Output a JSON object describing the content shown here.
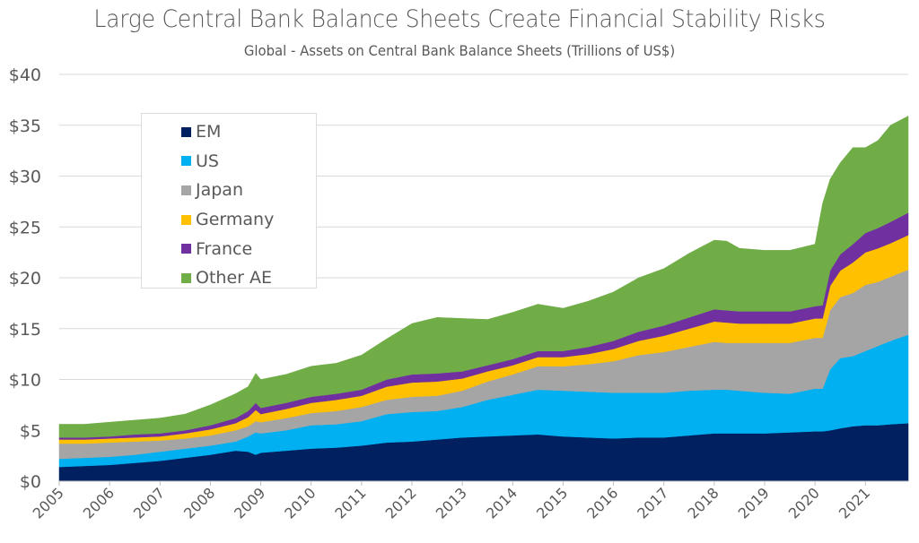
{
  "chart_data": {
    "type": "area",
    "stacked": true,
    "title": "Large Central Bank Balance Sheets Create Financial Stability Risks",
    "subtitle": "Global - Assets on Central Bank Balance Sheets (Trillions of US$)",
    "xlabel": "",
    "ylabel": "",
    "ylim": [
      0,
      40
    ],
    "xlim": [
      2005,
      2021.85
    ],
    "y_ticks": [
      "$0",
      "$5",
      "$10",
      "$15",
      "$20",
      "$25",
      "$30",
      "$35",
      "$40"
    ],
    "y_tick_values": [
      0,
      5,
      10,
      15,
      20,
      25,
      30,
      35,
      40
    ],
    "x_ticks": [
      "2005",
      "2006",
      "2007",
      "2008",
      "2009",
      "2010",
      "2011",
      "2012",
      "2013",
      "2014",
      "2015",
      "2016",
      "2017",
      "2018",
      "2019",
      "2020",
      "2021"
    ],
    "grid": true,
    "legend_position": "top-left",
    "x": [
      2005.0,
      2005.5,
      2006.0,
      2006.5,
      2007.0,
      2007.5,
      2008.0,
      2008.5,
      2008.75,
      2008.9,
      2009.0,
      2009.5,
      2010.0,
      2010.5,
      2011.0,
      2011.5,
      2012.0,
      2012.5,
      2013.0,
      2013.5,
      2014.0,
      2014.5,
      2015.0,
      2015.5,
      2016.0,
      2016.5,
      2017.0,
      2017.5,
      2018.0,
      2018.25,
      2018.5,
      2019.0,
      2019.5,
      2020.0,
      2020.15,
      2020.3,
      2020.5,
      2020.75,
      2021.0,
      2021.25,
      2021.5,
      2021.85
    ],
    "series": [
      {
        "name": "EM",
        "color": "#002060",
        "values": [
          1.4,
          1.5,
          1.6,
          1.8,
          2.0,
          2.3,
          2.6,
          3.0,
          2.9,
          2.6,
          2.8,
          3.0,
          3.2,
          3.3,
          3.5,
          3.8,
          3.9,
          4.1,
          4.3,
          4.4,
          4.5,
          4.6,
          4.4,
          4.3,
          4.2,
          4.3,
          4.3,
          4.5,
          4.7,
          4.7,
          4.7,
          4.7,
          4.8,
          4.9,
          4.9,
          5.0,
          5.2,
          5.4,
          5.5,
          5.5,
          5.6,
          5.7
        ]
      },
      {
        "name": "US",
        "color": "#00B0F0",
        "values": [
          0.8,
          0.8,
          0.8,
          0.8,
          0.9,
          0.9,
          0.9,
          0.9,
          1.5,
          2.2,
          1.9,
          2.0,
          2.3,
          2.3,
          2.4,
          2.8,
          2.9,
          2.8,
          3.0,
          3.6,
          4.0,
          4.4,
          4.5,
          4.5,
          4.5,
          4.4,
          4.4,
          4.4,
          4.3,
          4.3,
          4.2,
          4.0,
          3.8,
          4.2,
          4.2,
          6.0,
          6.9,
          6.9,
          7.3,
          7.8,
          8.2,
          8.7
        ]
      },
      {
        "name": "Japan",
        "color": "#A5A5A5",
        "values": [
          1.5,
          1.4,
          1.4,
          1.3,
          1.1,
          1.0,
          1.0,
          1.1,
          1.0,
          1.1,
          1.1,
          1.2,
          1.2,
          1.3,
          1.4,
          1.4,
          1.5,
          1.5,
          1.6,
          1.8,
          2.0,
          2.3,
          2.4,
          2.7,
          3.1,
          3.7,
          4.0,
          4.3,
          4.7,
          4.6,
          4.7,
          4.9,
          5.0,
          5.0,
          5.0,
          5.8,
          6.0,
          6.2,
          6.5,
          6.3,
          6.3,
          6.4
        ]
      },
      {
        "name": "Germany",
        "color": "#FFC000",
        "values": [
          0.4,
          0.4,
          0.4,
          0.4,
          0.4,
          0.5,
          0.6,
          0.7,
          0.9,
          1.1,
          0.8,
          0.9,
          1.0,
          1.1,
          1.1,
          1.3,
          1.4,
          1.4,
          1.2,
          1.0,
          0.9,
          0.9,
          0.9,
          1.0,
          1.2,
          1.4,
          1.6,
          1.8,
          2.0,
          2.0,
          1.9,
          1.9,
          1.9,
          1.9,
          1.9,
          2.4,
          2.6,
          3.0,
          3.2,
          3.3,
          3.3,
          3.4
        ]
      },
      {
        "name": "France",
        "color": "#7030A0",
        "values": [
          0.2,
          0.2,
          0.2,
          0.3,
          0.3,
          0.3,
          0.4,
          0.5,
          0.6,
          0.7,
          0.6,
          0.6,
          0.6,
          0.6,
          0.6,
          0.7,
          0.8,
          0.8,
          0.7,
          0.6,
          0.6,
          0.6,
          0.6,
          0.7,
          0.8,
          0.9,
          1.0,
          1.1,
          1.2,
          1.2,
          1.2,
          1.2,
          1.2,
          1.2,
          1.3,
          1.5,
          1.6,
          1.8,
          1.9,
          2.0,
          2.1,
          2.2
        ]
      },
      {
        "name": "Other AE",
        "color": "#70AD47",
        "values": [
          1.3,
          1.3,
          1.4,
          1.4,
          1.5,
          1.6,
          2.0,
          2.4,
          2.4,
          2.9,
          2.8,
          2.8,
          3.0,
          3.0,
          3.4,
          4.0,
          5.0,
          5.5,
          5.2,
          4.5,
          4.6,
          4.6,
          4.2,
          4.5,
          4.8,
          5.3,
          5.6,
          6.3,
          6.8,
          6.8,
          6.2,
          6.0,
          6.0,
          6.1,
          10.0,
          9.0,
          9.0,
          9.5,
          8.4,
          8.6,
          9.5,
          9.5
        ]
      }
    ]
  }
}
